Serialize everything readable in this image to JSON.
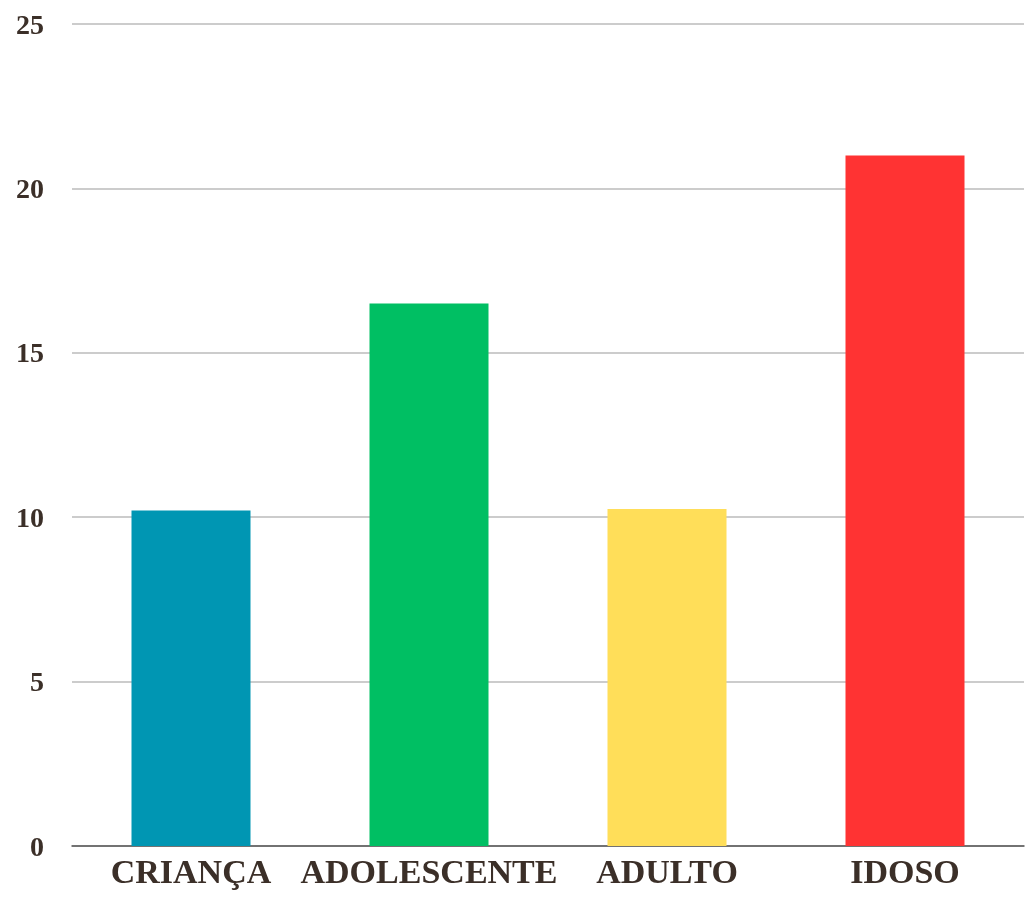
{
  "chart_data": {
    "type": "bar",
    "categories": [
      "CRIANÇA",
      "ADOLESCENTE",
      "ADULTO",
      "IDOSO"
    ],
    "values": [
      10.2,
      16.5,
      10.25,
      21
    ],
    "colors": [
      "#0096b3",
      "#00bf63",
      "#ffde59",
      "#ff3333"
    ],
    "ylim": [
      0,
      25
    ],
    "yticks": [
      0,
      5,
      10,
      15,
      20,
      25
    ],
    "grid": "y"
  }
}
